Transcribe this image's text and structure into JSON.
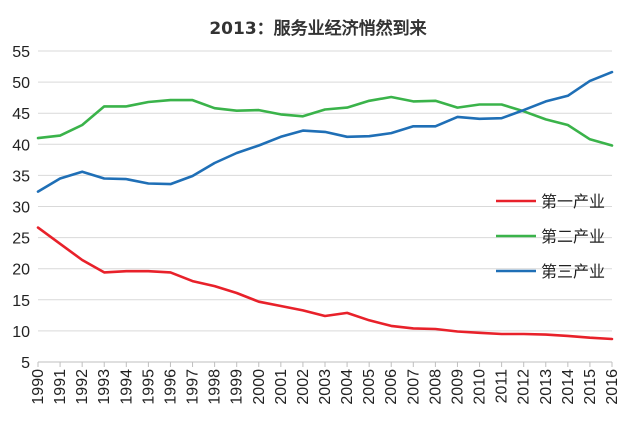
{
  "chart_data": {
    "type": "line",
    "title": "2013：服务业经济悄然到来",
    "xlabel": "",
    "ylabel": "",
    "ylim": [
      5,
      55
    ],
    "yticks": [
      5,
      10,
      15,
      20,
      25,
      30,
      35,
      40,
      45,
      50,
      55
    ],
    "grid": true,
    "legend_position": "right",
    "x": [
      1990,
      1991,
      1992,
      1993,
      1994,
      1995,
      1996,
      1997,
      1998,
      1999,
      2000,
      2001,
      2002,
      2003,
      2004,
      2005,
      2006,
      2007,
      2008,
      2009,
      2010,
      2011,
      2012,
      2013,
      2014,
      2015,
      2016
    ],
    "series": [
      {
        "name": "第一产业",
        "color": "#e8212a",
        "values": [
          26.6,
          24.0,
          21.4,
          19.4,
          19.6,
          19.6,
          19.4,
          18.0,
          17.2,
          16.1,
          14.7,
          14.0,
          13.3,
          12.4,
          12.9,
          11.7,
          10.8,
          10.4,
          10.3,
          9.9,
          9.7,
          9.5,
          9.5,
          9.4,
          9.2,
          8.9,
          8.7
        ]
      },
      {
        "name": "第二产业",
        "color": "#3ab34a",
        "values": [
          41.0,
          41.4,
          43.1,
          46.1,
          46.1,
          46.8,
          47.1,
          47.1,
          45.8,
          45.4,
          45.5,
          44.8,
          44.5,
          45.6,
          45.9,
          47.0,
          47.6,
          46.9,
          47.0,
          45.9,
          46.4,
          46.4,
          45.3,
          44.0,
          43.1,
          40.8,
          39.8
        ]
      },
      {
        "name": "第三产业",
        "color": "#1f6fb6",
        "values": [
          32.4,
          34.5,
          35.6,
          34.5,
          34.4,
          33.7,
          33.6,
          34.9,
          37.0,
          38.6,
          39.8,
          41.2,
          42.2,
          42.0,
          41.2,
          41.3,
          41.8,
          42.9,
          42.9,
          44.4,
          44.1,
          44.2,
          45.5,
          46.9,
          47.8,
          50.2,
          51.6
        ]
      }
    ]
  }
}
